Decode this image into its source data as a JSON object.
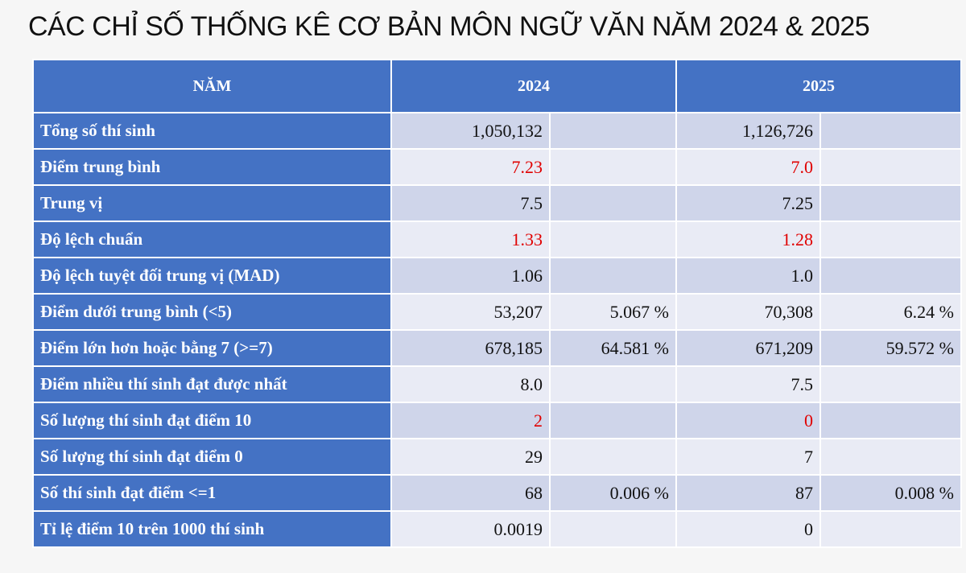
{
  "header": {
    "title": "CÁC CHỈ SỐ THỐNG KÊ CƠ BẢN MÔN NGỮ VĂN NĂM 2024 & 2025"
  },
  "table": {
    "header": [
      "NĂM",
      "2024",
      "2025"
    ],
    "highlight_color": "#e00000",
    "rows": [
      {
        "label": "Tổng số thí sinh",
        "cells": [
          "1,050,132",
          null,
          "1,126,726",
          null
        ]
      },
      {
        "label": "Điểm trung bình",
        "cells": [
          "7.23",
          null,
          "7.0",
          null
        ],
        "highlight": true
      },
      {
        "label": "Trung vị",
        "cells": [
          "7.5",
          null,
          "7.25",
          null
        ]
      },
      {
        "label": "Độ lệch chuẩn",
        "cells": [
          "1.33",
          null,
          "1.28",
          null
        ],
        "highlight": true
      },
      {
        "label": "Độ lệch tuyệt đối trung vị (MAD)",
        "cells": [
          "1.06",
          null,
          "1.0",
          null
        ]
      },
      {
        "label": "Điểm dưới trung bình (<5)",
        "cells": [
          "53,207",
          "5.067 %",
          "70,308",
          "6.24 %"
        ]
      },
      {
        "label": "Điểm lớn hơn hoặc bằng 7 (>=7)",
        "cells": [
          "678,185",
          "64.581 %",
          "671,209",
          "59.572 %"
        ]
      },
      {
        "label": "Điểm nhiều thí sinh đạt được nhất",
        "cells": [
          "8.0",
          null,
          "7.5",
          null
        ]
      },
      {
        "label": "Số lượng thí sinh đạt điểm 10",
        "cells": [
          "2",
          null,
          "0",
          null
        ],
        "highlight": true
      },
      {
        "label": "Số lượng thí sinh đạt điểm 0",
        "cells": [
          "29",
          null,
          "7",
          null
        ]
      },
      {
        "label": "Số thí sinh đạt điểm <=1",
        "cells": [
          "68",
          "0.006 %",
          "87",
          "0.008 %"
        ]
      },
      {
        "label": "Tỉ lệ điểm 10 trên 1000 thí sinh",
        "cells": [
          "0.0019",
          null,
          "0",
          null
        ]
      }
    ]
  }
}
